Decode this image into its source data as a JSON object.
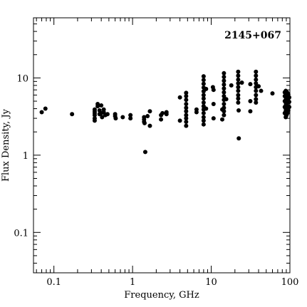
{
  "chart_data": {
    "type": "scatter",
    "title": "2145+067",
    "xlabel": "Frequency, GHz",
    "ylabel": "Flux Density, Jy",
    "x_scale": "log",
    "y_scale": "log",
    "xlim": [
      0.055,
      100
    ],
    "ylim": [
      0.03,
      60
    ],
    "x_tick_labels": [
      "0.1",
      "1",
      "10",
      "100"
    ],
    "y_tick_labels": [
      "0.1",
      "1",
      "10"
    ],
    "grid": false,
    "legend": "none",
    "marker_color": "#000000",
    "points": [
      [
        0.07,
        3.6
      ],
      [
        0.078,
        4.0
      ],
      [
        0.17,
        3.4
      ],
      [
        0.33,
        3.3
      ],
      [
        0.33,
        3.5
      ],
      [
        0.33,
        3.7
      ],
      [
        0.33,
        3.9
      ],
      [
        0.33,
        2.8
      ],
      [
        0.33,
        3.0
      ],
      [
        0.36,
        4.3
      ],
      [
        0.36,
        4.6
      ],
      [
        0.38,
        3.8
      ],
      [
        0.38,
        3.4
      ],
      [
        0.4,
        4.4
      ],
      [
        0.4,
        3.5
      ],
      [
        0.41,
        3.1
      ],
      [
        0.43,
        3.9
      ],
      [
        0.43,
        3.6
      ],
      [
        0.45,
        3.3
      ],
      [
        0.48,
        3.4
      ],
      [
        0.6,
        3.2
      ],
      [
        0.6,
        3.4
      ],
      [
        0.61,
        3.0
      ],
      [
        0.75,
        3.1
      ],
      [
        0.94,
        3.3
      ],
      [
        0.94,
        3.0
      ],
      [
        1.4,
        3.1
      ],
      [
        1.4,
        2.9
      ],
      [
        1.4,
        2.7
      ],
      [
        1.42,
        2.6
      ],
      [
        1.45,
        1.1
      ],
      [
        1.55,
        3.2
      ],
      [
        1.66,
        2.4
      ],
      [
        1.66,
        3.7
      ],
      [
        2.3,
        3.3
      ],
      [
        2.3,
        2.9
      ],
      [
        2.4,
        3.5
      ],
      [
        2.7,
        3.4
      ],
      [
        2.7,
        3.6
      ],
      [
        4.0,
        5.6
      ],
      [
        4.0,
        2.8
      ],
      [
        4.8,
        6.4
      ],
      [
        4.8,
        5.8
      ],
      [
        4.8,
        5.2
      ],
      [
        4.8,
        4.6
      ],
      [
        4.8,
        4.1
      ],
      [
        4.8,
        3.7
      ],
      [
        4.8,
        3.3
      ],
      [
        4.8,
        3.0
      ],
      [
        4.8,
        2.7
      ],
      [
        4.8,
        2.4
      ],
      [
        6.5,
        3.9
      ],
      [
        6.5,
        3.6
      ],
      [
        8.0,
        10.5
      ],
      [
        8.0,
        9.4
      ],
      [
        8.0,
        8.4
      ],
      [
        8.0,
        7.5
      ],
      [
        8.0,
        6.7
      ],
      [
        8.0,
        6.0
      ],
      [
        8.0,
        5.4
      ],
      [
        8.0,
        4.8
      ],
      [
        8.0,
        4.3
      ],
      [
        8.0,
        3.9
      ],
      [
        8.0,
        3.5
      ],
      [
        8.0,
        3.1
      ],
      [
        8.0,
        2.8
      ],
      [
        8.0,
        2.5
      ],
      [
        8.6,
        7.2
      ],
      [
        8.6,
        4.0
      ],
      [
        10.5,
        7.6
      ],
      [
        10.7,
        7.0
      ],
      [
        10.7,
        4.6
      ],
      [
        10.7,
        3.0
      ],
      [
        14.5,
        11.5
      ],
      [
        14.5,
        10.3
      ],
      [
        14.5,
        9.2
      ],
      [
        14.5,
        8.2
      ],
      [
        14.5,
        7.3
      ],
      [
        14.5,
        6.5
      ],
      [
        14.5,
        5.8
      ],
      [
        14.5,
        5.2
      ],
      [
        14.5,
        4.6
      ],
      [
        14.5,
        4.1
      ],
      [
        14.5,
        3.7
      ],
      [
        14.5,
        3.3
      ],
      [
        13.8,
        3.9
      ],
      [
        13.8,
        2.9
      ],
      [
        15.5,
        5.3
      ],
      [
        18.0,
        8.0
      ],
      [
        22.0,
        12.0
      ],
      [
        22.0,
        10.7
      ],
      [
        22.0,
        9.5
      ],
      [
        22.0,
        8.5
      ],
      [
        22.0,
        7.6
      ],
      [
        22.0,
        6.8
      ],
      [
        22.0,
        6.0
      ],
      [
        22.0,
        5.4
      ],
      [
        22.0,
        4.8
      ],
      [
        22.3,
        3.8
      ],
      [
        22.4,
        1.65
      ],
      [
        24.5,
        8.7
      ],
      [
        31.4,
        8.3
      ],
      [
        31.4,
        5.0
      ],
      [
        31.4,
        3.7
      ],
      [
        37.0,
        12.0
      ],
      [
        37.0,
        10.7
      ],
      [
        37.0,
        9.5
      ],
      [
        37.0,
        8.5
      ],
      [
        37.0,
        7.6
      ],
      [
        37.0,
        6.8
      ],
      [
        37.0,
        6.0
      ],
      [
        37.0,
        5.3
      ],
      [
        37.0,
        4.8
      ],
      [
        40.0,
        7.8
      ],
      [
        43.0,
        6.8
      ],
      [
        60.0,
        6.3
      ],
      [
        86.0,
        3.5
      ],
      [
        86.0,
        4.2
      ],
      [
        86.0,
        5.0
      ],
      [
        86.0,
        5.8
      ],
      [
        86.0,
        6.5
      ],
      [
        88.5,
        3.1
      ],
      [
        88.5,
        3.4
      ],
      [
        88.5,
        3.7
      ],
      [
        88.5,
        4.0
      ],
      [
        88.5,
        4.4
      ],
      [
        88.5,
        4.8
      ],
      [
        88.5,
        5.2
      ],
      [
        88.5,
        5.7
      ],
      [
        88.5,
        6.2
      ],
      [
        88.5,
        6.8
      ],
      [
        90.5,
        3.3
      ],
      [
        90.5,
        3.6
      ],
      [
        90.5,
        3.9
      ],
      [
        90.5,
        4.3
      ],
      [
        90.5,
        4.7
      ],
      [
        90.5,
        5.1
      ],
      [
        90.5,
        5.6
      ],
      [
        90.5,
        6.1
      ],
      [
        90.5,
        6.6
      ],
      [
        93.0,
        3.5
      ],
      [
        93.0,
        3.9
      ],
      [
        93.0,
        4.3
      ],
      [
        93.0,
        4.8
      ],
      [
        93.0,
        5.3
      ],
      [
        93.0,
        5.9
      ],
      [
        93.0,
        6.4
      ],
      [
        95.5,
        3.8
      ],
      [
        95.5,
        4.3
      ],
      [
        95.5,
        4.9
      ],
      [
        95.5,
        5.5
      ],
      [
        95.5,
        6.1
      ],
      [
        98.0,
        4.2
      ],
      [
        98.0,
        4.9
      ],
      [
        98.0,
        5.6
      ]
    ]
  }
}
